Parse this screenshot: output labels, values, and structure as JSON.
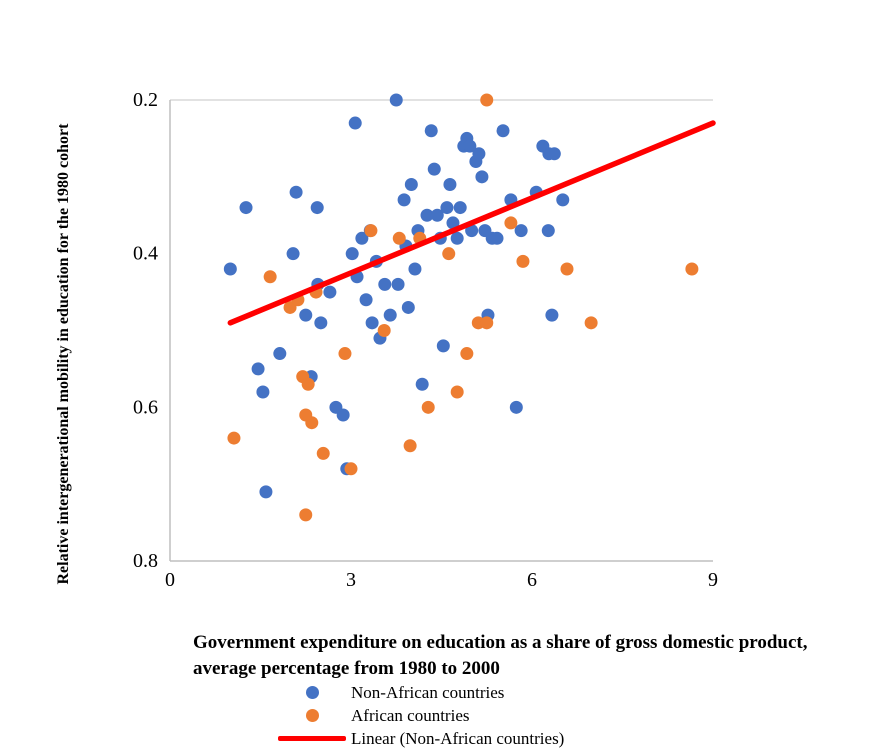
{
  "chart_data": {
    "type": "scatter",
    "title": "",
    "xlabel": "Government expenditure on education as a share of gross domestic product, average percentage from 1980 to 2000",
    "ylabel": "Relative intergenerational mobility in education for the 1980 cohort",
    "xlim": [
      0,
      9
    ],
    "ylim": [
      0.2,
      0.8
    ],
    "y_axis_inverted": true,
    "x_ticks": [
      "0",
      "3",
      "6",
      "9"
    ],
    "y_ticks": [
      "0.2",
      "0.4",
      "0.6",
      "0.8"
    ],
    "grid": false,
    "legend_position": "bottom",
    "series": [
      {
        "name": "Non-African countries",
        "color": "#4472C4",
        "marker": "circle",
        "points": [
          [
            1.0,
            0.42
          ],
          [
            1.26,
            0.34
          ],
          [
            1.46,
            0.55
          ],
          [
            1.54,
            0.58
          ],
          [
            1.59,
            0.71
          ],
          [
            1.82,
            0.53
          ],
          [
            2.04,
            0.4
          ],
          [
            2.09,
            0.32
          ],
          [
            2.25,
            0.48
          ],
          [
            2.34,
            0.56
          ],
          [
            2.44,
            0.34
          ],
          [
            2.45,
            0.44
          ],
          [
            2.5,
            0.49
          ],
          [
            2.65,
            0.45
          ],
          [
            2.75,
            0.6
          ],
          [
            2.87,
            0.61
          ],
          [
            2.93,
            0.68
          ],
          [
            3.02,
            0.4
          ],
          [
            3.07,
            0.23
          ],
          [
            3.1,
            0.43
          ],
          [
            3.18,
            0.38
          ],
          [
            3.25,
            0.46
          ],
          [
            3.32,
            0.37
          ],
          [
            3.35,
            0.49
          ],
          [
            3.42,
            0.41
          ],
          [
            3.48,
            0.51
          ],
          [
            3.56,
            0.44
          ],
          [
            3.65,
            0.48
          ],
          [
            3.75,
            0.2
          ],
          [
            3.78,
            0.44
          ],
          [
            3.88,
            0.33
          ],
          [
            3.91,
            0.39
          ],
          [
            3.95,
            0.47
          ],
          [
            4.0,
            0.31
          ],
          [
            4.06,
            0.42
          ],
          [
            4.11,
            0.37
          ],
          [
            4.18,
            0.57
          ],
          [
            4.26,
            0.35
          ],
          [
            4.33,
            0.24
          ],
          [
            4.38,
            0.29
          ],
          [
            4.43,
            0.35
          ],
          [
            4.48,
            0.38
          ],
          [
            4.53,
            0.52
          ],
          [
            4.59,
            0.34
          ],
          [
            4.64,
            0.31
          ],
          [
            4.69,
            0.36
          ],
          [
            4.76,
            0.38
          ],
          [
            4.81,
            0.34
          ],
          [
            4.87,
            0.26
          ],
          [
            4.92,
            0.25
          ],
          [
            4.97,
            0.26
          ],
          [
            5.0,
            0.37
          ],
          [
            5.07,
            0.28
          ],
          [
            5.12,
            0.27
          ],
          [
            5.17,
            0.3
          ],
          [
            5.22,
            0.37
          ],
          [
            5.27,
            0.48
          ],
          [
            5.34,
            0.38
          ],
          [
            5.42,
            0.38
          ],
          [
            5.52,
            0.24
          ],
          [
            5.65,
            0.33
          ],
          [
            5.74,
            0.6
          ],
          [
            5.82,
            0.37
          ],
          [
            6.07,
            0.32
          ],
          [
            6.18,
            0.26
          ],
          [
            6.27,
            0.37
          ],
          [
            6.28,
            0.27
          ],
          [
            6.33,
            0.48
          ],
          [
            6.37,
            0.27
          ],
          [
            6.51,
            0.33
          ]
        ]
      },
      {
        "name": "African countries",
        "color": "#ED7D31",
        "marker": "circle",
        "points": [
          [
            1.06,
            0.64
          ],
          [
            1.66,
            0.43
          ],
          [
            1.99,
            0.47
          ],
          [
            2.12,
            0.46
          ],
          [
            2.2,
            0.56
          ],
          [
            2.25,
            0.61
          ],
          [
            2.25,
            0.74
          ],
          [
            2.29,
            0.57
          ],
          [
            2.35,
            0.62
          ],
          [
            2.42,
            0.45
          ],
          [
            2.54,
            0.66
          ],
          [
            2.9,
            0.53
          ],
          [
            3.0,
            0.68
          ],
          [
            3.33,
            0.37
          ],
          [
            3.55,
            0.5
          ],
          [
            3.8,
            0.38
          ],
          [
            3.98,
            0.65
          ],
          [
            4.14,
            0.38
          ],
          [
            4.28,
            0.6
          ],
          [
            4.62,
            0.4
          ],
          [
            4.76,
            0.58
          ],
          [
            4.92,
            0.53
          ],
          [
            5.11,
            0.49
          ],
          [
            5.25,
            0.2
          ],
          [
            5.25,
            0.49
          ],
          [
            5.65,
            0.36
          ],
          [
            5.85,
            0.41
          ],
          [
            6.58,
            0.42
          ],
          [
            6.98,
            0.49
          ],
          [
            8.65,
            0.42
          ]
        ]
      }
    ],
    "trend_line": {
      "label": "Linear (Non-African countries)",
      "color": "#FF0000",
      "points": [
        [
          1.0,
          0.49
        ],
        [
          9.0,
          0.23
        ]
      ]
    }
  },
  "colors": {
    "axis_line": "#BFBFBF",
    "top_gridline": "#D9D9D9",
    "text": "#000000",
    "background": "#FFFFFF"
  }
}
